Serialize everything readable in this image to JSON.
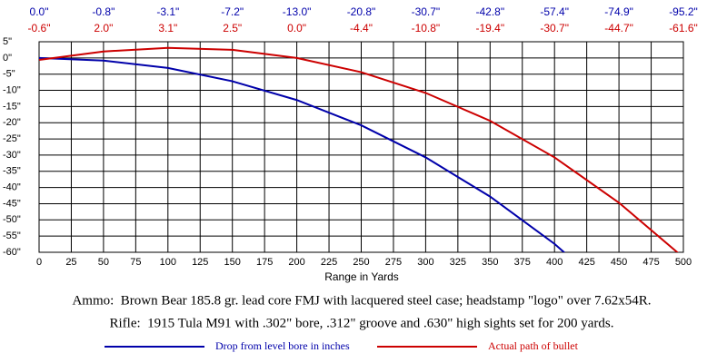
{
  "chart_data": {
    "type": "line",
    "x": [
      0,
      50,
      100,
      150,
      200,
      250,
      300,
      350,
      400,
      450,
      500
    ],
    "series": [
      {
        "name": "Drop from level bore in inches",
        "color": "#0000aa",
        "values": [
          0.0,
          -0.8,
          -3.1,
          -7.2,
          -13.0,
          -20.8,
          -30.7,
          -42.8,
          -57.4,
          -74.9,
          -95.2
        ],
        "value_labels": [
          "0.0\"",
          "-0.8\"",
          "-3.1\"",
          "-7.2\"",
          "-13.0\"",
          "-20.8\"",
          "-30.7\"",
          "-42.8\"",
          "-57.4\"",
          "-74.9\"",
          "-95.2\""
        ]
      },
      {
        "name": "Actual path of bullet",
        "color": "#cc0000",
        "values": [
          -0.6,
          2.0,
          3.1,
          2.5,
          0.0,
          -4.4,
          -10.8,
          -19.4,
          -30.7,
          -44.7,
          -61.6
        ],
        "value_labels": [
          "-0.6\"",
          "2.0\"",
          "3.1\"",
          "2.5\"",
          "0.0\"",
          "-4.4\"",
          "-10.8\"",
          "-19.4\"",
          "-30.7\"",
          "-44.7\"",
          "-61.6\""
        ]
      }
    ],
    "xlim": [
      0,
      500
    ],
    "xticks": [
      0,
      25,
      50,
      75,
      100,
      125,
      150,
      175,
      200,
      225,
      250,
      275,
      300,
      325,
      350,
      375,
      400,
      425,
      450,
      475,
      500
    ],
    "ylim": [
      -60,
      5
    ],
    "yticks": [
      {
        "value": 5,
        "label": "5\""
      },
      {
        "value": 0,
        "label": "0\""
      },
      {
        "value": -5,
        "label": "-5\""
      },
      {
        "value": -10,
        "label": "-10\""
      },
      {
        "value": -15,
        "label": "-15\""
      },
      {
        "value": -20,
        "label": "-20\""
      },
      {
        "value": -25,
        "label": "-25\""
      },
      {
        "value": -30,
        "label": "-30\""
      },
      {
        "value": -35,
        "label": "-35\""
      },
      {
        "value": -40,
        "label": "-40\""
      },
      {
        "value": -45,
        "label": "-45\""
      },
      {
        "value": -50,
        "label": "-50\""
      },
      {
        "value": -55,
        "label": "-55\""
      },
      {
        "value": -60,
        "label": "-60\""
      }
    ],
    "xlabel": "Range in Yards",
    "annotations": [
      "Ammo:  Brown Bear 185.8 gr. lead core FMJ with lacquered steel case; headstamp \"logo\" over 7.62x54R.",
      "Rifle:  1915 Tula M91 with .302\" bore, .312\" groove and .630\" high sights set for 200 yards."
    ],
    "grid": true
  }
}
